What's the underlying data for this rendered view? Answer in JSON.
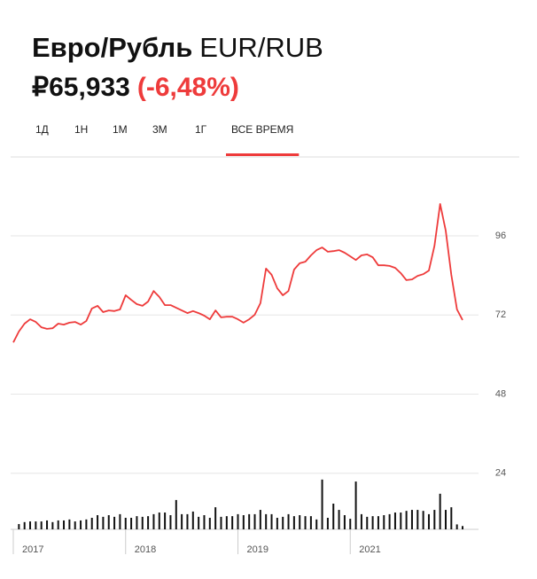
{
  "header": {
    "name": "Евро/Рубль",
    "code": "EUR/RUB",
    "price": "₽65,933",
    "change": "(-6,48%)",
    "tabs": [
      "1Д",
      "1Н",
      "1М",
      "3М",
      "1Г",
      "ВСЕ ВРЕМЯ"
    ],
    "active_tab": 5
  },
  "chart_data": {
    "type": "line",
    "categories": [
      "2017",
      null,
      null,
      null,
      null,
      null,
      null,
      null,
      null,
      null,
      null,
      null,
      null,
      null,
      null,
      null,
      null,
      null,
      null,
      null,
      "2018",
      null,
      null,
      null,
      null,
      null,
      null,
      null,
      null,
      null,
      null,
      null,
      null,
      null,
      null,
      null,
      null,
      null,
      null,
      null,
      "2019",
      null,
      null,
      null,
      null,
      null,
      null,
      null,
      null,
      null,
      null,
      null,
      null,
      null,
      null,
      null,
      null,
      null,
      null,
      null,
      "2021",
      null,
      null,
      null,
      null,
      null,
      null,
      null,
      null,
      null,
      null,
      null,
      null,
      null,
      null,
      null,
      null,
      null,
      null,
      null,
      null
    ],
    "series": [
      {
        "color": "#ee3b3b",
        "values": [
          63.7,
          67.0,
          69.4,
          70.7,
          69.9,
          68.3,
          67.8,
          68.0,
          69.4,
          69.1,
          69.7,
          69.9,
          69.1,
          70.2,
          74.0,
          74.8,
          72.9,
          73.4,
          73.2,
          73.7,
          78.0,
          76.6,
          75.3,
          74.8,
          76.1,
          79.3,
          77.5,
          75.0,
          75.0,
          74.2,
          73.4,
          72.6,
          73.2,
          72.6,
          71.8,
          70.7,
          73.4,
          71.3,
          71.5,
          71.5,
          70.7,
          69.7,
          70.7,
          72.1,
          75.6,
          86.1,
          84.2,
          80.1,
          78.0,
          79.3,
          85.8,
          87.7,
          88.2,
          90.1,
          91.7,
          92.5,
          91.2,
          91.4,
          91.7,
          90.9,
          89.8,
          88.7,
          90.1,
          90.4,
          89.5,
          87.1,
          87.1,
          86.9,
          86.3,
          84.7,
          82.6,
          82.8,
          83.9,
          84.4,
          85.5,
          93.0,
          105.7,
          97.6,
          84.2,
          73.7,
          70.5
        ]
      }
    ],
    "volume": {
      "color": "#111111",
      "values": [
        null,
        1.6,
        2.2,
        2.4,
        2.4,
        2.4,
        2.7,
        2.2,
        2.7,
        2.7,
        3.0,
        2.4,
        2.7,
        3.0,
        3.5,
        4.3,
        3.8,
        4.3,
        3.8,
        4.6,
        3.5,
        3.5,
        4.0,
        3.8,
        4.0,
        4.6,
        5.1,
        5.1,
        4.3,
        8.9,
        4.6,
        4.6,
        5.4,
        3.8,
        4.3,
        3.5,
        6.7,
        3.8,
        4.0,
        4.0,
        4.6,
        4.3,
        4.6,
        4.6,
        5.9,
        4.6,
        4.6,
        3.5,
        3.8,
        4.6,
        4.0,
        4.3,
        4.0,
        4.0,
        3.0,
        15.1,
        3.5,
        7.8,
        5.9,
        4.3,
        3.2,
        14.5,
        4.6,
        3.8,
        4.0,
        4.0,
        4.3,
        4.6,
        5.1,
        5.1,
        5.6,
        5.9,
        5.9,
        5.6,
        4.6,
        5.9,
        10.8,
        5.9,
        6.7,
        1.5,
        1.0
      ]
    },
    "ylim": [
      7,
      117.8
    ],
    "yticks": [
      24,
      48,
      72,
      96
    ],
    "grid": true
  }
}
